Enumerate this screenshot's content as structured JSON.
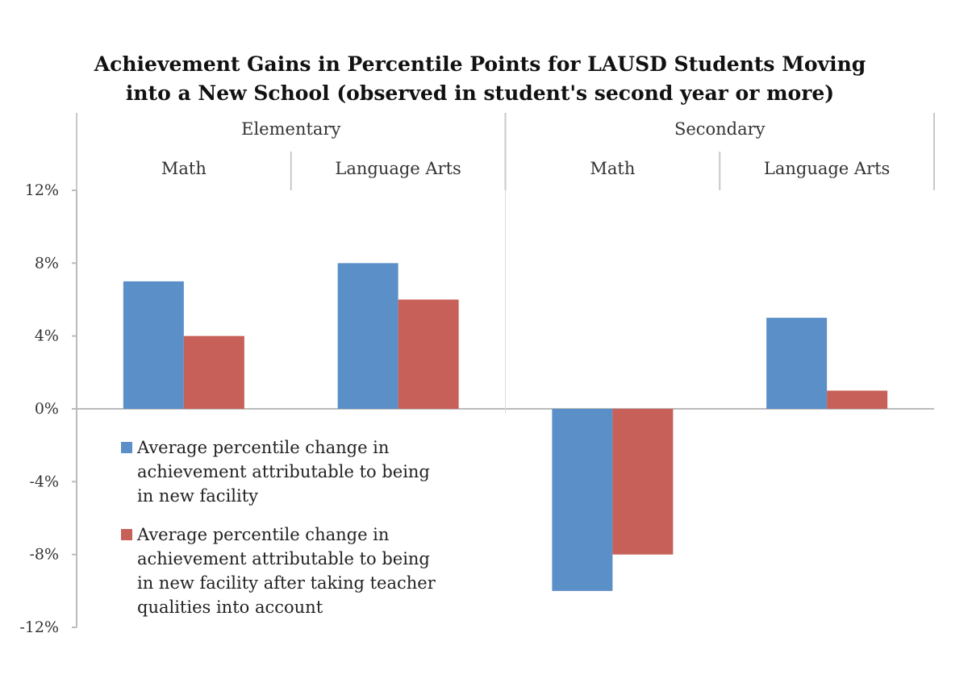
{
  "chart_data": {
    "type": "bar",
    "title_line1": "Achievement Gains in Percentile Points for LAUSD Students Moving",
    "title_line2": "into a New School (observed in student's second year or more)",
    "groups": [
      {
        "label": "Elementary",
        "span": 2
      },
      {
        "label": "Secondary",
        "span": 2
      }
    ],
    "categories": [
      "Math",
      "Language Arts",
      "Math",
      "Language Arts"
    ],
    "series": [
      {
        "name": "Average percentile change in achievement attributable to being in new facility",
        "color": "#5B8FC7",
        "values": [
          7,
          8,
          -10,
          5
        ]
      },
      {
        "name": "Average percentile change in achievement attributable to being in new facility after taking teacher qualities into account",
        "color": "#C8605A",
        "values": [
          4,
          6,
          -8,
          1
        ]
      }
    ],
    "y_ticks": [
      "12%",
      "8%",
      "4%",
      "0%",
      "-4%",
      "-8%",
      "-12%"
    ],
    "ylim": [
      -12,
      12
    ],
    "legend_position": "bottom-left"
  },
  "legend": {
    "item1_lines": [
      "Average percentile change in",
      "achievement attributable to being",
      "in new facility"
    ],
    "item2_lines": [
      "Average percentile change in",
      "achievement attributable to being",
      "in new facility after taking teacher",
      "qualities into account"
    ]
  }
}
